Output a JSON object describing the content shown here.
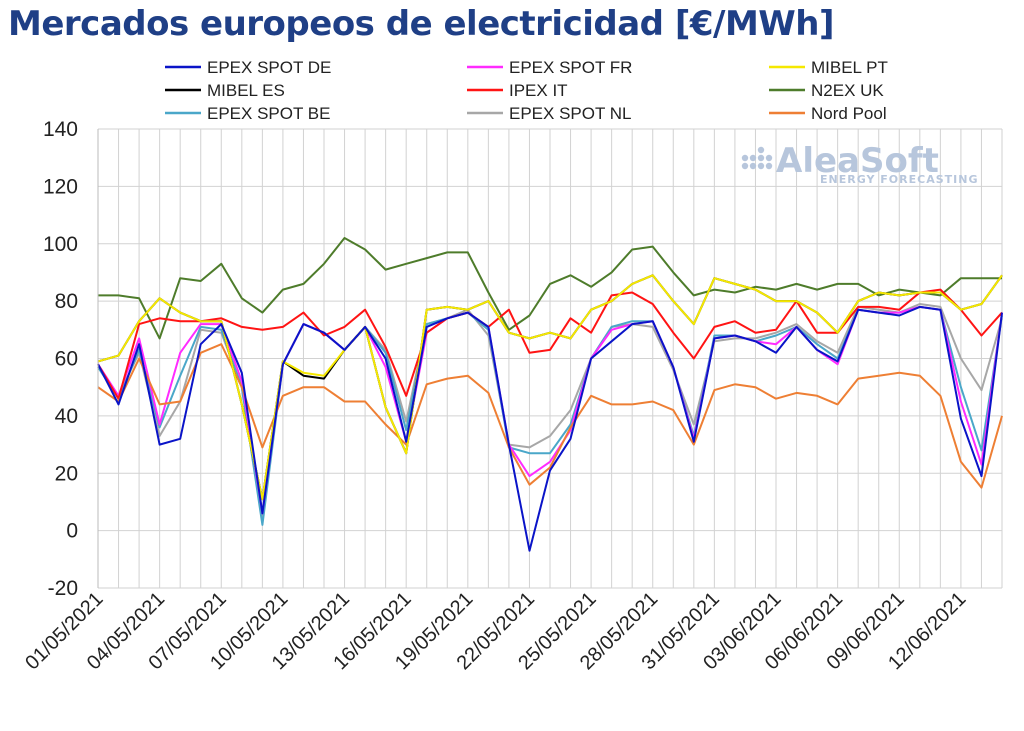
{
  "chart_data": {
    "type": "line",
    "title": "Mercados europeos de electricidad [€/MWh]",
    "ylim": [
      -20,
      140
    ],
    "yticks": [
      -20,
      0,
      20,
      40,
      60,
      80,
      100,
      120,
      140
    ],
    "grid": true,
    "legend_placement": "top",
    "watermark": {
      "name": "AleaSoft",
      "tagline": "ENERGY FORECASTING"
    },
    "x": [
      "01/05/2021",
      "02/05/2021",
      "03/05/2021",
      "04/05/2021",
      "05/05/2021",
      "06/05/2021",
      "07/05/2021",
      "08/05/2021",
      "09/05/2021",
      "10/05/2021",
      "11/05/2021",
      "12/05/2021",
      "13/05/2021",
      "14/05/2021",
      "15/05/2021",
      "16/05/2021",
      "17/05/2021",
      "18/05/2021",
      "19/05/2021",
      "20/05/2021",
      "21/05/2021",
      "22/05/2021",
      "23/05/2021",
      "24/05/2021",
      "25/05/2021",
      "26/05/2021",
      "27/05/2021",
      "28/05/2021",
      "29/05/2021",
      "30/05/2021",
      "31/05/2021",
      "01/06/2021",
      "02/06/2021",
      "03/06/2021",
      "04/06/2021",
      "05/06/2021",
      "06/06/2021",
      "07/06/2021",
      "08/06/2021",
      "09/06/2021",
      "10/06/2021",
      "11/06/2021",
      "12/06/2021",
      "13/06/2021",
      "14/06/2021"
    ],
    "xtick_labels": [
      "01/05/2021",
      "04/05/2021",
      "07/05/2021",
      "10/05/2021",
      "13/05/2021",
      "16/05/2021",
      "19/05/2021",
      "22/05/2021",
      "25/05/2021",
      "28/05/2021",
      "31/05/2021",
      "03/06/2021",
      "06/06/2021",
      "09/06/2021",
      "12/06/2021"
    ],
    "series": [
      {
        "name": "EPEX SPOT DE",
        "color": "#0a14c8",
        "values": [
          58,
          44,
          65,
          30,
          32,
          65,
          72,
          55,
          6,
          58,
          72,
          69,
          63,
          71,
          60,
          31,
          71,
          74,
          76,
          71,
          30,
          -7,
          21,
          32,
          60,
          66,
          72,
          73,
          57,
          31,
          67,
          68,
          66,
          62,
          71,
          63,
          59,
          77,
          76,
          75,
          78,
          77,
          39,
          19,
          76
        ]
      },
      {
        "name": "EPEX SPOT FR",
        "color": "#ff2bff",
        "values": [
          58,
          47,
          67,
          37,
          62,
          72,
          72,
          52,
          6,
          58,
          72,
          69,
          63,
          71,
          57,
          31,
          69,
          74,
          76,
          71,
          30,
          19,
          24,
          35,
          60,
          70,
          72,
          73,
          57,
          32,
          67,
          68,
          66,
          65,
          71,
          63,
          58,
          77,
          76,
          76,
          78,
          77,
          45,
          23,
          76
        ]
      },
      {
        "name": "MIBEL PT",
        "color": "#f5e800",
        "values": [
          59,
          61,
          73,
          81,
          76,
          73,
          73,
          44,
          11,
          59,
          55,
          54,
          63,
          71,
          43,
          27,
          77,
          78,
          77,
          80,
          69,
          67,
          69,
          67,
          77,
          80,
          86,
          89,
          80,
          72,
          88,
          86,
          84,
          80,
          80,
          76,
          69,
          80,
          83,
          82,
          83,
          83,
          77,
          79,
          89
        ]
      },
      {
        "name": "MIBEL ES",
        "color": "#000000",
        "values": [
          59,
          61,
          73,
          81,
          76,
          73,
          73,
          44,
          11,
          59,
          54,
          53,
          63,
          71,
          43,
          27,
          77,
          78,
          77,
          80,
          69,
          67,
          69,
          67,
          77,
          80,
          86,
          89,
          80,
          72,
          88,
          86,
          84,
          80,
          80,
          76,
          69,
          80,
          83,
          82,
          83,
          83,
          77,
          79,
          89
        ]
      },
      {
        "name": "IPEX IT",
        "color": "#ff1414",
        "values": [
          58,
          46,
          72,
          74,
          73,
          73,
          74,
          71,
          70,
          71,
          76,
          68,
          71,
          77,
          64,
          47,
          69,
          74,
          76,
          71,
          77,
          62,
          63,
          74,
          69,
          82,
          83,
          79,
          69,
          60,
          71,
          73,
          69,
          70,
          80,
          69,
          69,
          78,
          78,
          77,
          83,
          84,
          77,
          68,
          76
        ]
      },
      {
        "name": "N2EX UK",
        "color": "#4e7c2b",
        "values": [
          82,
          82,
          81,
          67,
          88,
          87,
          93,
          81,
          76,
          84,
          86,
          93,
          102,
          98,
          91,
          93,
          95,
          97,
          97,
          83,
          70,
          75,
          86,
          89,
          85,
          90,
          98,
          99,
          90,
          82,
          84,
          83,
          85,
          84,
          86,
          84,
          86,
          86,
          82,
          84,
          83,
          82,
          88,
          88,
          88
        ]
      },
      {
        "name": "EPEX SPOT BE",
        "color": "#4aa7c9",
        "values": [
          57,
          46,
          63,
          36,
          54,
          71,
          70,
          50,
          2,
          58,
          72,
          69,
          63,
          71,
          62,
          35,
          72,
          74,
          76,
          70,
          29,
          27,
          27,
          37,
          60,
          71,
          73,
          73,
          57,
          33,
          68,
          68,
          66,
          68,
          71,
          65,
          60,
          77,
          76,
          76,
          78,
          77,
          50,
          28,
          75
        ]
      },
      {
        "name": "EPEX SPOT NL",
        "color": "#a7a7a7",
        "values": [
          57,
          47,
          62,
          33,
          45,
          70,
          69,
          50,
          5,
          58,
          72,
          69,
          63,
          71,
          63,
          38,
          72,
          74,
          77,
          68,
          30,
          29,
          33,
          42,
          60,
          71,
          72,
          71,
          56,
          37,
          66,
          67,
          67,
          69,
          72,
          66,
          62,
          78,
          77,
          76,
          79,
          78,
          60,
          49,
          74
        ]
      },
      {
        "name": "Nord Pool",
        "color": "#ee7f34",
        "values": [
          50,
          45,
          60,
          44,
          45,
          62,
          65,
          50,
          29,
          47,
          50,
          50,
          45,
          45,
          37,
          30,
          51,
          53,
          54,
          48,
          29,
          16,
          22,
          36,
          47,
          44,
          44,
          45,
          42,
          30,
          49,
          51,
          50,
          46,
          48,
          47,
          44,
          53,
          54,
          55,
          54,
          47,
          24,
          15,
          40
        ]
      }
    ]
  }
}
